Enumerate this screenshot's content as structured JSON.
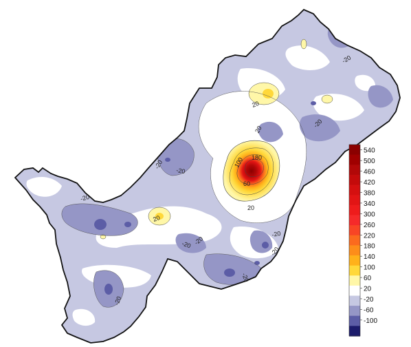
{
  "map": {
    "type": "contour-map",
    "contour_labels": [
      {
        "text": "-20",
        "at": "northeast"
      },
      {
        "text": "20",
        "at": "north-center"
      },
      {
        "text": "20",
        "at": "north-center-east"
      },
      {
        "text": "-20",
        "at": "east"
      },
      {
        "text": "-20",
        "at": "west-center"
      },
      {
        "text": "-20",
        "at": "west-center"
      },
      {
        "text": "-20",
        "at": "west"
      },
      {
        "text": "100",
        "at": "hotspot"
      },
      {
        "text": "180",
        "at": "hotspot"
      },
      {
        "text": "60",
        "at": "hotspot"
      },
      {
        "text": "20",
        "at": "below-hotspot"
      },
      {
        "text": "20",
        "at": "west-small-peak"
      },
      {
        "text": "-20",
        "at": "south-center"
      },
      {
        "text": "-20",
        "at": "south-center"
      },
      {
        "text": "-20",
        "at": "southeast"
      },
      {
        "text": "-20",
        "at": "southeast"
      },
      {
        "text": "-20",
        "at": "south"
      },
      {
        "text": "-20",
        "at": "southwest"
      }
    ]
  },
  "legend": {
    "ticks": [
      "540",
      "500",
      "460",
      "420",
      "380",
      "340",
      "300",
      "260",
      "220",
      "180",
      "140",
      "100",
      "60",
      "20",
      "-20",
      "-60",
      "-100"
    ],
    "colors": {
      "540": "#8b0000",
      "500": "#a00000",
      "460": "#b20808",
      "420": "#c40b0b",
      "380": "#d51010",
      "340": "#e21515",
      "300": "#ee1c1c",
      "260": "#f52a2a",
      "220": "#f84525",
      "180": "#fb6a1e",
      "140": "#fd8d1a",
      "100": "#ffb11a",
      "60": "#ffd83a",
      "20": "#fff7a8",
      "-20": "#ffffff",
      "-60": "#c6c8e2",
      "-100": "#9596c6",
      "-140": "#5c5da6",
      "-180": "#1c1c6c"
    }
  }
}
